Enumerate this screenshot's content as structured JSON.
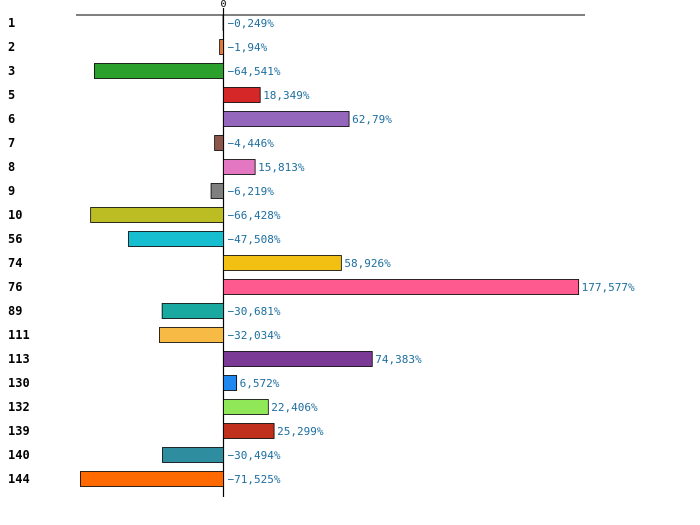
{
  "chart_data": {
    "type": "bar",
    "orientation": "horizontal",
    "title": "",
    "xlabel": "",
    "ylabel": "",
    "zero_label": "0",
    "xlim": [
      -100,
      245
    ],
    "grid": false,
    "categories": [
      "1",
      "2",
      "3",
      "5",
      "6",
      "7",
      "8",
      "9",
      "10",
      "56",
      "74",
      "76",
      "89",
      "111",
      "113",
      "130",
      "132",
      "139",
      "140",
      "144"
    ],
    "values": [
      -0.249,
      -1.94,
      -64.541,
      18.349,
      62.79,
      -4.446,
      15.813,
      -6.219,
      -66.428,
      -47.508,
      58.926,
      177.577,
      -30.681,
      -32.034,
      74.383,
      6.572,
      22.406,
      25.299,
      -30.494,
      -71.525
    ],
    "value_labels": [
      "−0,249%",
      "−1,94%",
      "−64,541%",
      "18,349%",
      "62,79%",
      "−4,446%",
      "15,813%",
      "−6,219%",
      "−66,428%",
      "−47,508%",
      "58,926%",
      "177,577%",
      "−30,681%",
      "−32,034%",
      "74,383%",
      "6,572%",
      "22,406%",
      "25,299%",
      "−30,494%",
      "−71,525%"
    ],
    "colors": [
      "#1f77b4",
      "#e07b39",
      "#2ca02c",
      "#d62728",
      "#9467bd",
      "#8c564b",
      "#e377c2",
      "#7f7f7f",
      "#bcbd22",
      "#17becf",
      "#f2c012",
      "#ff5a8f",
      "#19a9a0",
      "#f7bb45",
      "#7b3a96",
      "#1e87f0",
      "#90e858",
      "#c0301c",
      "#2e8ea0",
      "#ff6a00"
    ]
  }
}
